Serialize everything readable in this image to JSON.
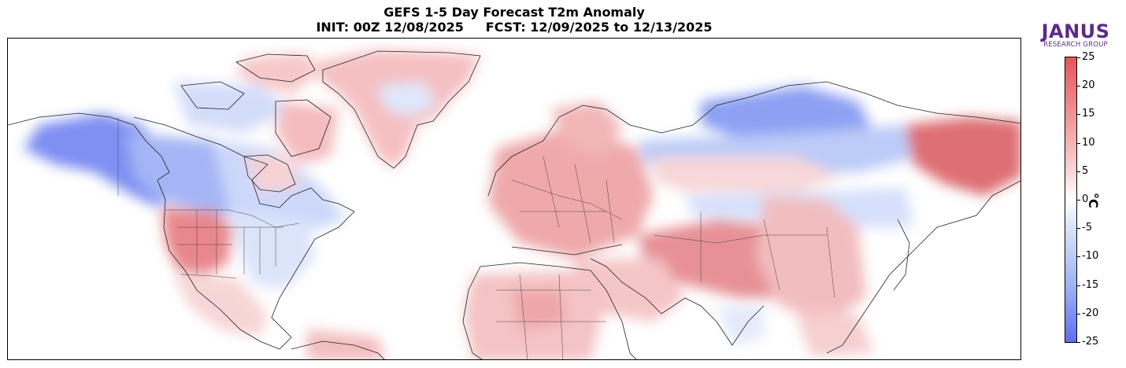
{
  "header": {
    "title_line1": "GEFS 1-5 Day Forecast T2m Anomaly",
    "title_line2": "INIT: 00Z 12/08/2025     FCST: 12/09/2025 to 12/13/2025"
  },
  "logo": {
    "main": "JANUS",
    "sub": "RESEARCH GROUP"
  },
  "colorbar": {
    "unit": "°C",
    "min": -25,
    "max": 25,
    "ticks": [
      "25",
      "20",
      "15",
      "10",
      "5",
      "0",
      "-5",
      "-10",
      "-15",
      "-20",
      "-25"
    ],
    "colors": {
      "warm_max": "#e8545a",
      "neutral": "#ffffff",
      "cold_max": "#5f6ff0"
    }
  },
  "map": {
    "description_regions": [
      {
        "name": "alaska-yukon",
        "anomaly": -15
      },
      {
        "name": "western-canada",
        "anomaly": -10
      },
      {
        "name": "eastern-canada",
        "anomaly": -5
      },
      {
        "name": "eastern-us",
        "anomaly": -5
      },
      {
        "name": "western-us",
        "anomaly": 8
      },
      {
        "name": "greenland",
        "anomaly": 5
      },
      {
        "name": "europe",
        "anomaly": 6
      },
      {
        "name": "siberia",
        "anomaly": -8
      },
      {
        "name": "far-east-russia",
        "anomaly": 15
      },
      {
        "name": "central-asia",
        "anomaly": 9
      },
      {
        "name": "africa",
        "anomaly": 4
      }
    ]
  }
}
